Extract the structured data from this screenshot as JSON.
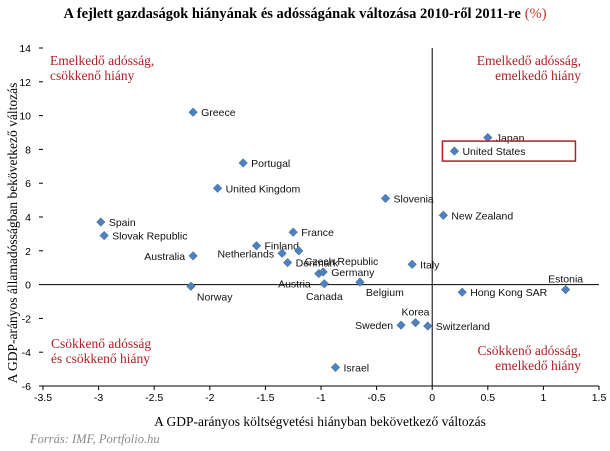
{
  "title": "A fejlett gazdaságok hiányának és adósságának változása 2010-ről 2011-re",
  "title_unit": "(%)",
  "source": "Forrás: IMF, Portfolio.hu",
  "chart_data": {
    "type": "scatter",
    "xlabel": "A GDP-arányos költségvetési hiányban bekövetkező változás",
    "ylabel": "A GDP-arányos államadósságban bekövetkező változás",
    "xlim": [
      -3.5,
      1.5
    ],
    "ylim": [
      -6,
      14
    ],
    "x_ticks": [
      "-3.5",
      "-3",
      "-2.5",
      "-2",
      "-1.5",
      "-1",
      "-0.5",
      "0",
      "0.5",
      "1",
      "1.5"
    ],
    "y_ticks": [
      "-6",
      "-4",
      "-2",
      "0",
      "2",
      "4",
      "6",
      "8",
      "10",
      "12",
      "14"
    ],
    "grid": false,
    "marker_color": "#4f81bd",
    "highlight_color": "#b02028",
    "quadrant_color": "#b02028",
    "quadrant_labels": [
      {
        "id": "top-left",
        "lines": [
          "Emelkedő adósság,",
          "csökkenő hiány"
        ]
      },
      {
        "id": "top-right",
        "lines": [
          "Emelkedő adósság,",
          "emelkedő hiány"
        ]
      },
      {
        "id": "bottom-left",
        "lines": [
          "Csökkenő adósság",
          "és csökkenő hiány"
        ]
      },
      {
        "id": "bottom-right",
        "lines": [
          "Csökkenő adósság,",
          "emelkedő hiány"
        ]
      }
    ],
    "points": [
      {
        "label": "Greece",
        "x": -2.15,
        "y": 10.2,
        "pos": "right"
      },
      {
        "label": "Portugal",
        "x": -1.7,
        "y": 7.2,
        "pos": "right"
      },
      {
        "label": "United Kingdom",
        "x": -1.93,
        "y": 5.7,
        "pos": "right"
      },
      {
        "label": "Spain",
        "x": -2.98,
        "y": 3.7,
        "pos": "right"
      },
      {
        "label": "Slovak Republic",
        "x": -2.95,
        "y": 2.9,
        "pos": "right"
      },
      {
        "label": "Australia",
        "x": -2.15,
        "y": 1.7,
        "pos": "left"
      },
      {
        "label": "Norway",
        "x": -2.17,
        "y": -0.1,
        "pos": "below-right"
      },
      {
        "label": "Finland",
        "x": -1.58,
        "y": 2.3,
        "pos": "right"
      },
      {
        "label": "France",
        "x": -1.25,
        "y": 3.1,
        "pos": "right"
      },
      {
        "label": "Netherlands",
        "x": -1.35,
        "y": 1.85,
        "pos": "left"
      },
      {
        "label": "Czech Republic",
        "x": -1.2,
        "y": 2.0,
        "pos": "below-right"
      },
      {
        "label": "Denmark",
        "x": -1.3,
        "y": 1.3,
        "pos": "right"
      },
      {
        "label": "Austria",
        "x": -1.02,
        "y": 0.65,
        "pos": "below-left"
      },
      {
        "label": "Germany",
        "x": -0.98,
        "y": 0.75,
        "pos": "right"
      },
      {
        "label": "Canada",
        "x": -0.97,
        "y": 0.05,
        "pos": "below"
      },
      {
        "label": "Belgium",
        "x": -0.65,
        "y": 0.15,
        "pos": "below-right"
      },
      {
        "label": "Slovenia",
        "x": -0.42,
        "y": 5.1,
        "pos": "right"
      },
      {
        "label": "Italy",
        "x": -0.18,
        "y": 1.2,
        "pos": "right"
      },
      {
        "label": "New Zealand",
        "x": 0.1,
        "y": 4.1,
        "pos": "right"
      },
      {
        "label": "Japan",
        "x": 0.5,
        "y": 8.7,
        "pos": "right"
      },
      {
        "label": "United States",
        "x": 0.2,
        "y": 7.9,
        "pos": "right",
        "highlight": true
      },
      {
        "label": "Hong Kong SAR",
        "x": 0.27,
        "y": -0.45,
        "pos": "right"
      },
      {
        "label": "Estonia",
        "x": 1.2,
        "y": -0.3,
        "pos": "above"
      },
      {
        "label": "Korea",
        "x": -0.15,
        "y": -2.25,
        "pos": "above"
      },
      {
        "label": "Sweden",
        "x": -0.28,
        "y": -2.4,
        "pos": "left"
      },
      {
        "label": "Switzerland",
        "x": -0.04,
        "y": -2.45,
        "pos": "right"
      },
      {
        "label": "Israel",
        "x": -0.87,
        "y": -4.9,
        "pos": "right"
      }
    ]
  }
}
